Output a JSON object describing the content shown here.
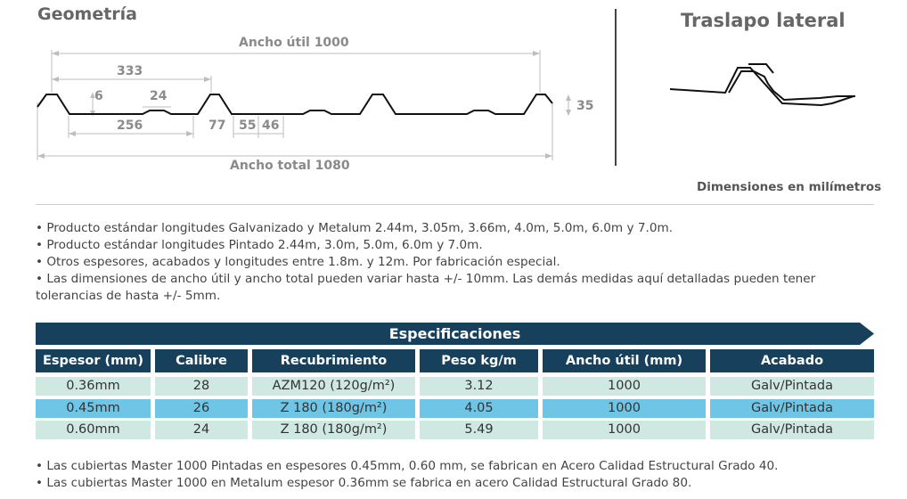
{
  "geometry": {
    "title": "Geometría",
    "dim_ancho_util": "Ancho útil 1000",
    "dim_333": "333",
    "dim_6": "6",
    "dim_24": "24",
    "dim_256": "256",
    "dim_77": "77",
    "dim_55": "55",
    "dim_46": "46",
    "dim_35": "35",
    "dim_ancho_total": "Ancho total 1080"
  },
  "traslapo": {
    "title": "Traslapo lateral"
  },
  "units_note": "Dimensiones en milímetros",
  "bullets": [
    "• Producto estándar longitudes Galvanizado y Metalum 2.44m, 3.05m, 3.66m, 4.0m, 5.0m, 6.0m y 7.0m.",
    "• Producto estándar longitudes Pintado 2.44m, 3.0m, 5.0m, 6.0m y 7.0m.",
    "• Otros espesores, acabados y longitudes entre 1.8m. y 12m. Por fabricación especial.",
    "• Las dimensiones de ancho útil y ancho total pueden variar hasta +/- 10mm. Las demás medidas aquí detalladas pueden tener tolerancias de hasta +/- 5mm."
  ],
  "specs": {
    "title": "Especificaciones",
    "headers": [
      "Espesor (mm)",
      "Calibre",
      "Recubrimiento",
      "Peso kg/m",
      "Ancho útil (mm)",
      "Acabado"
    ],
    "rows": [
      [
        "0.36mm",
        "28",
        "AZM120 (120g/m²)",
        "3.12",
        "1000",
        "Galv/Pintada"
      ],
      [
        "0.45mm",
        "26",
        "Z 180 (180g/m²)",
        "4.05",
        "1000",
        "Galv/Pintada"
      ],
      [
        "0.60mm",
        "24",
        "Z 180 (180g/m²)",
        "5.49",
        "1000",
        "Galv/Pintada"
      ]
    ],
    "colors": {
      "header": "#17405d",
      "row_light": "#cfe9e2",
      "row_blue": "#6fc5e6"
    }
  },
  "notes": [
    "• Las cubiertas Master 1000 Pintadas en espesores 0.45mm, 0.60 mm, se fabrican en Acero Calidad Estructural Grado 40.",
    "• Las cubiertas Master 1000 en Metalum espesor 0.36mm se fabrica en acero Calidad Estructural Grado 80."
  ]
}
